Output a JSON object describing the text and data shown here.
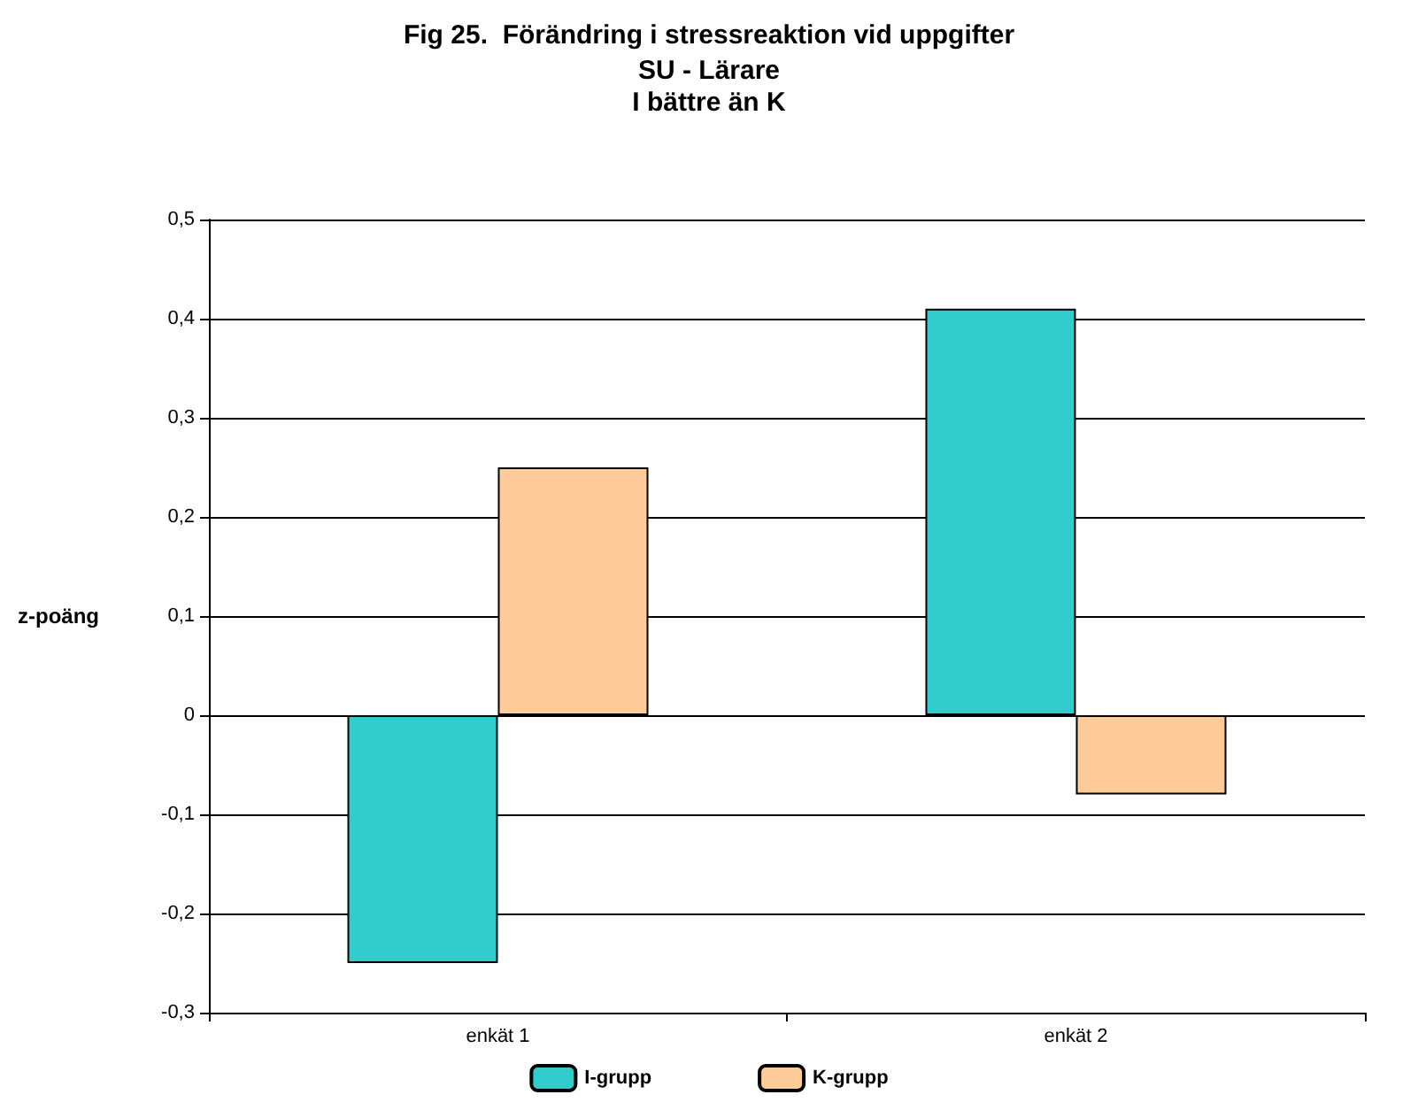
{
  "chart_data": {
    "type": "bar",
    "title": "Fig 25.  Förändring i stressreaktion vid uppgifter",
    "subtitle": "SU - Lärare\nI bättre än K",
    "ylabel": "z-poäng",
    "categories": [
      "enkät 1",
      "enkät 2"
    ],
    "series": [
      {
        "name": "I-grupp",
        "color": "#33cccc",
        "values": [
          -0.25,
          0.41
        ]
      },
      {
        "name": "K-grupp",
        "color": "#ffcc99",
        "values": [
          0.25,
          -0.08
        ]
      }
    ],
    "ylim": [
      -0.3,
      0.5
    ],
    "yticks": [
      {
        "value": -0.3,
        "label": "-0,3"
      },
      {
        "value": -0.2,
        "label": "-0,2"
      },
      {
        "value": -0.1,
        "label": "-0,1"
      },
      0,
      {
        "value": 0.1,
        "label": "0,1"
      },
      {
        "value": 0.2,
        "label": "0,2"
      },
      {
        "value": 0.3,
        "label": "0,3"
      },
      {
        "value": 0.4,
        "label": "0,4"
      },
      {
        "value": 0.5,
        "label": "0,5"
      }
    ],
    "grid": true,
    "legend": "bottom"
  }
}
